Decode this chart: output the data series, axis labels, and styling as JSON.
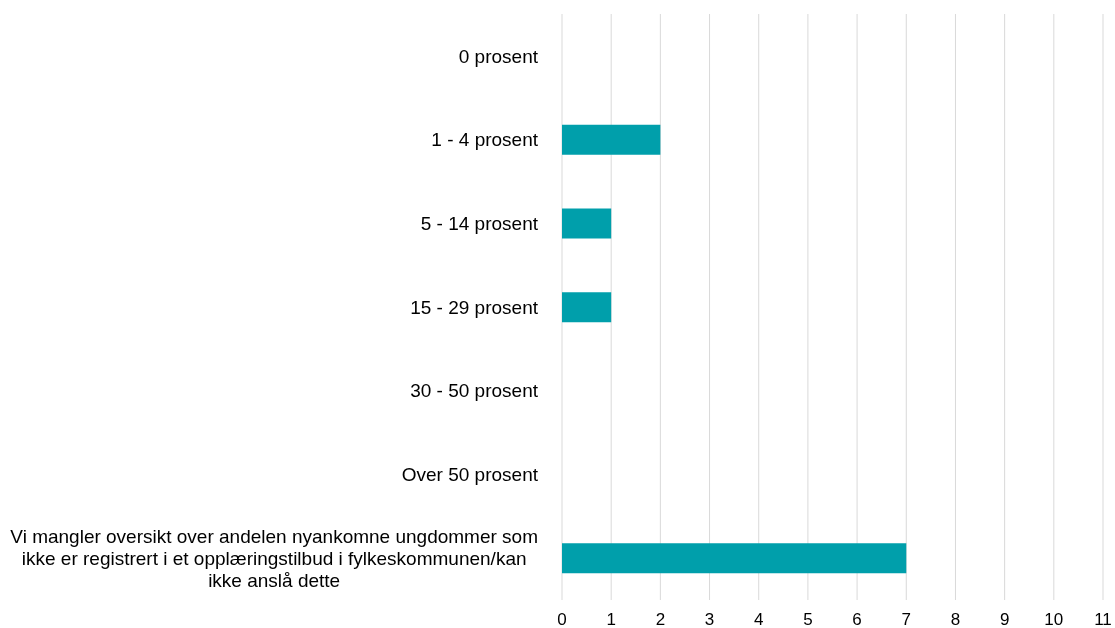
{
  "chart_data": {
    "type": "bar",
    "orientation": "horizontal",
    "categories": [
      "0 prosent",
      "1 - 4 prosent",
      "5 - 14 prosent",
      "15 - 29 prosent",
      "30 - 50 prosent",
      "Over 50 prosent",
      "Vi mangler oversikt over andelen nyankomne ungdommer som ikke er registrert i et opplæringstilbud i fylkeskommunen/kan ikke anslå dette"
    ],
    "values": [
      0,
      2,
      1,
      1,
      0,
      0,
      7
    ],
    "color": "#009fab",
    "xlim": [
      0,
      11
    ],
    "xticks": [
      0,
      1,
      2,
      3,
      4,
      5,
      6,
      7,
      8,
      9,
      10,
      11
    ],
    "grid": "x"
  }
}
